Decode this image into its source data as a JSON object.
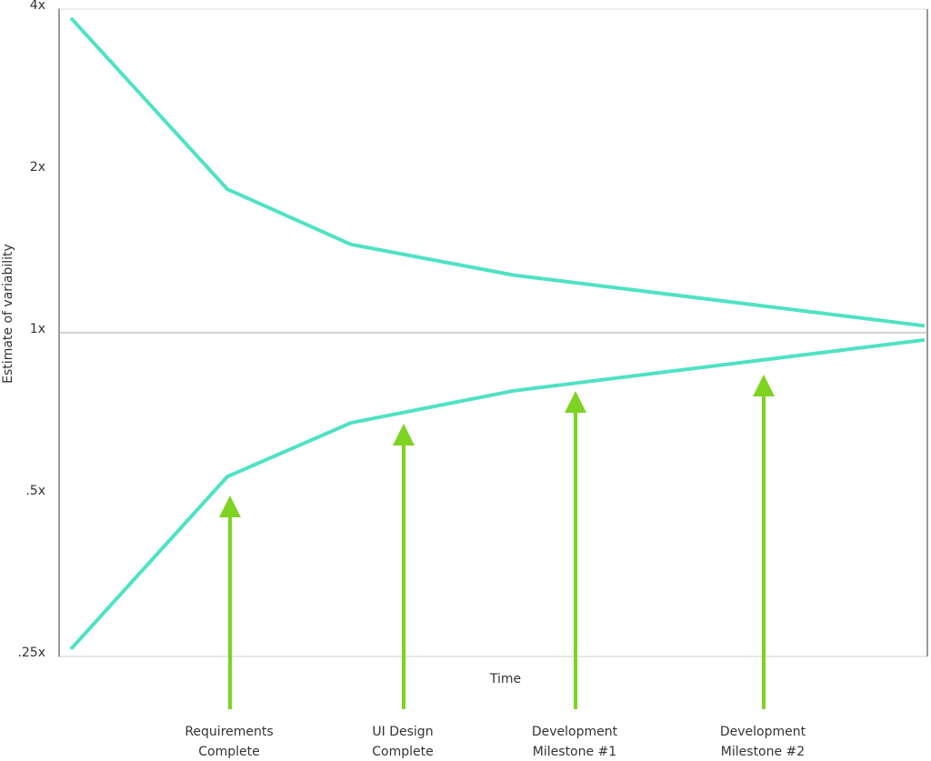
{
  "chart_data": {
    "type": "line",
    "y_label": "Estimate of variability",
    "x_label": "Time",
    "log_scale_y": true,
    "ylim": [
      0.25,
      4
    ],
    "yticks": [
      {
        "value": 4,
        "label": "4x"
      },
      {
        "value": 2,
        "label": "2x"
      },
      {
        "value": 1,
        "label": "1x"
      },
      {
        "value": 0.5,
        "label": ".5x"
      },
      {
        "value": 0.25,
        "label": ".25x"
      }
    ],
    "reference_line": 1,
    "series": [
      {
        "color": "#4fe2c4",
        "values": [
          3.85,
          1.85,
          1.46,
          1.28,
          1.03
        ]
      },
      {
        "color": "#4fe2c4",
        "values": [
          0.258,
          0.54,
          0.68,
          0.78,
          0.97
        ]
      }
    ],
    "milestone_color": "#7ed321",
    "milestones": [
      [
        "Requirements",
        "Complete"
      ],
      [
        "UI Design",
        "Complete"
      ],
      [
        "Development",
        "Milestone #1"
      ],
      [
        "Development",
        "Milestone #2"
      ]
    ]
  }
}
